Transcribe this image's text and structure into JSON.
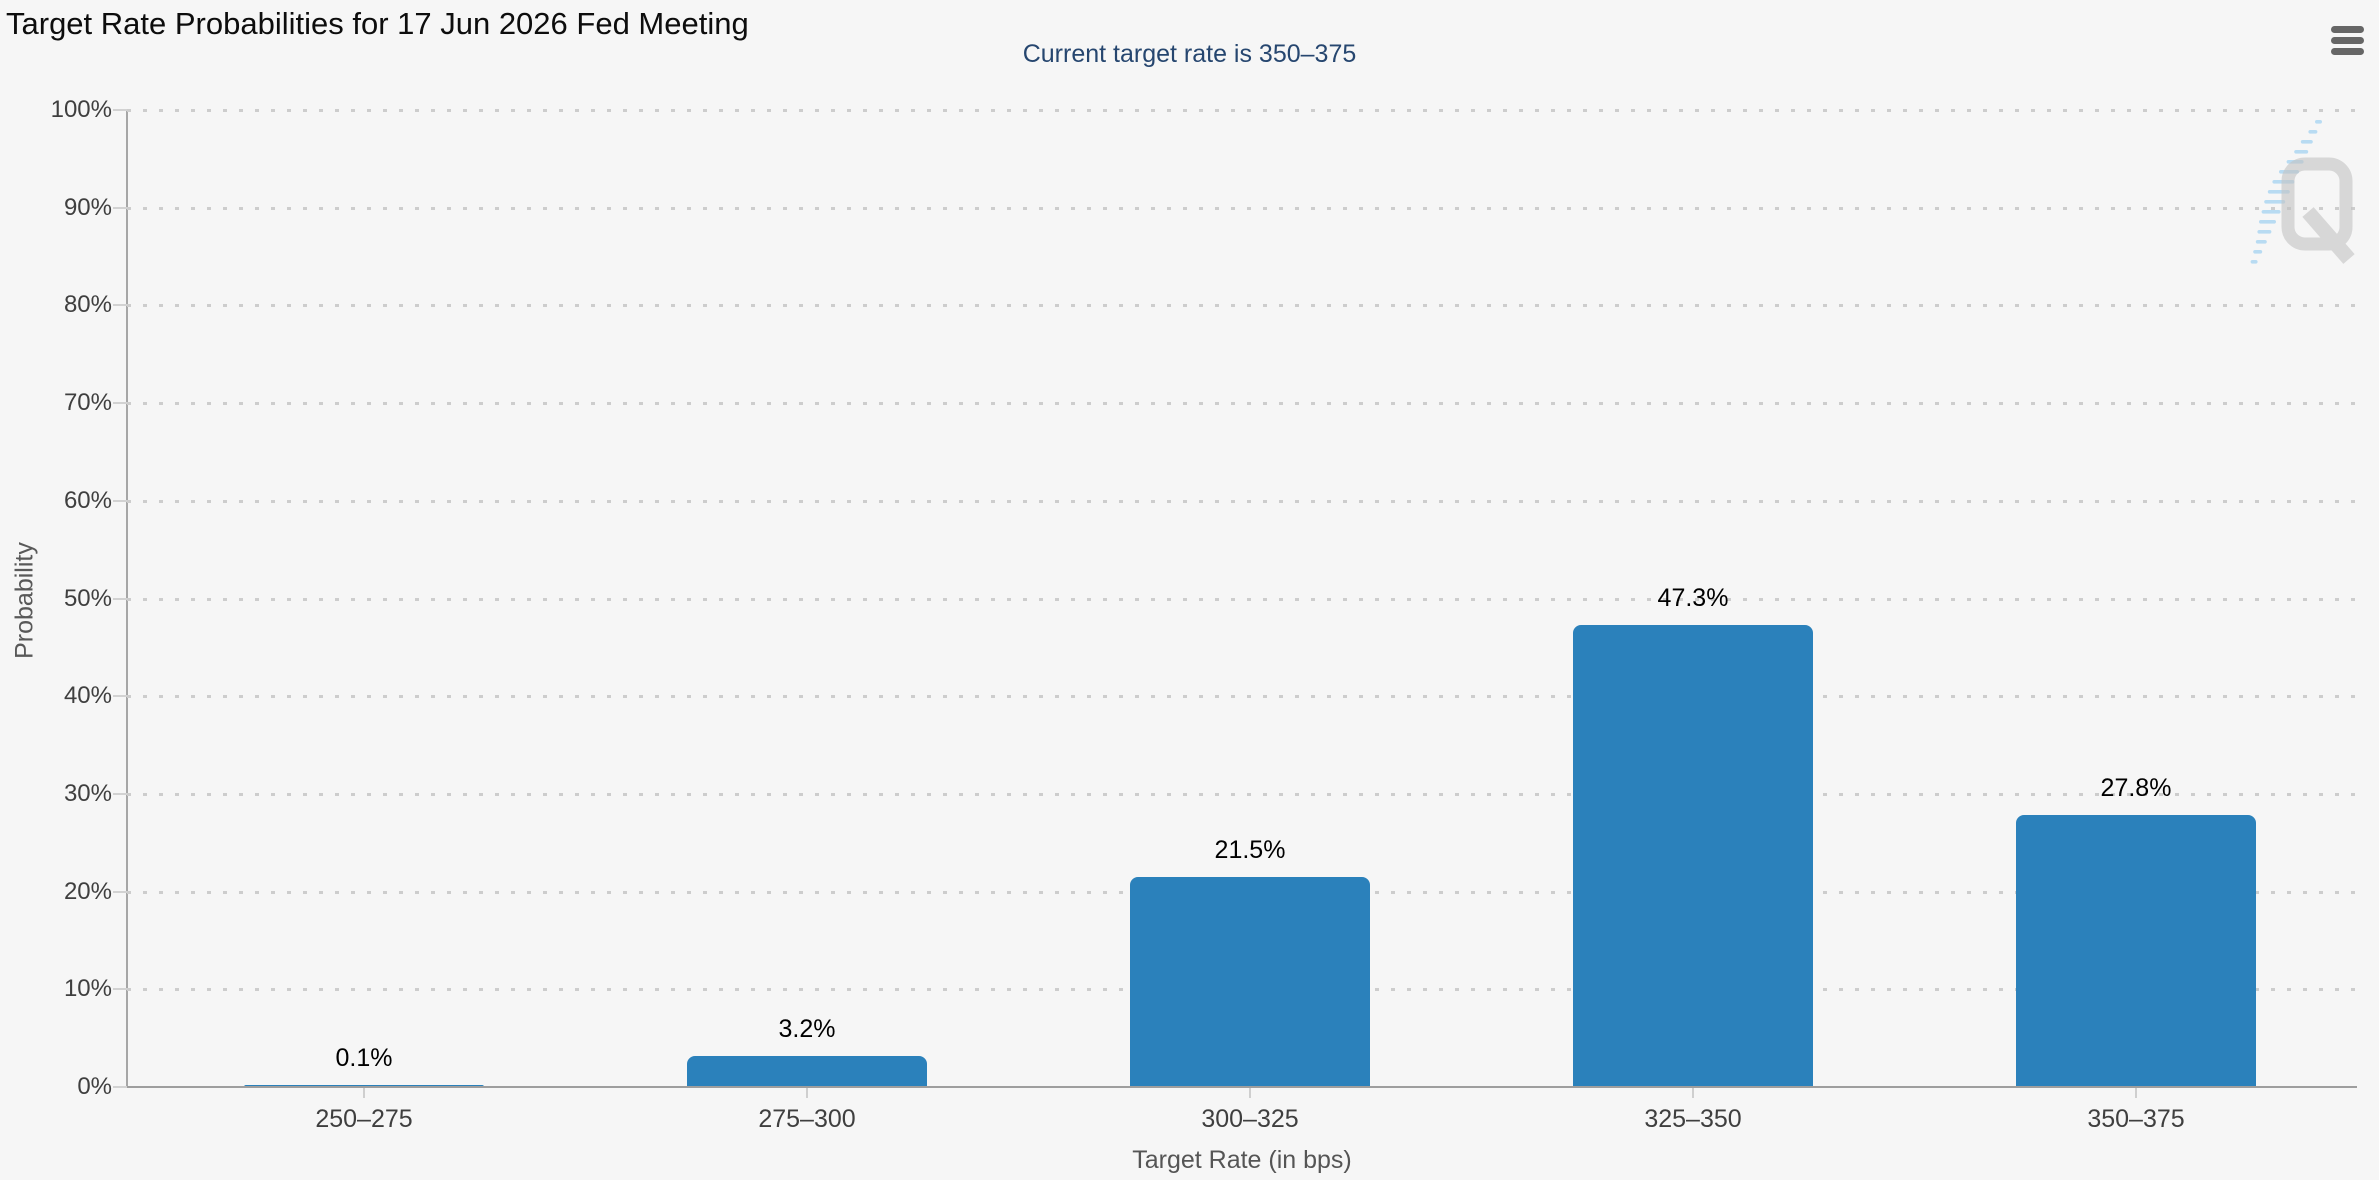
{
  "header": {
    "title": "Target Rate Probabilities for 17 Jun 2026 Fed Meeting",
    "subtitle": "Current target rate is 350–375"
  },
  "icons": {
    "menu": "hamburger-icon",
    "watermark": "quikstrike-q-icon"
  },
  "colors": {
    "background": "#f6f6f6",
    "bar": "#2b81bb",
    "title": "#0d0d0d",
    "subtitle": "#26466f",
    "axis_label": "#3f3f3f",
    "grid_dot": "#cdcdcd",
    "axis_line": "#a0a0a0",
    "menu_icon": "#666666",
    "watermark_gray": "#c3c3c3",
    "watermark_blue": "#aed7f2"
  },
  "chart_data": {
    "type": "bar",
    "title": "Target Rate Probabilities for 17 Jun 2026 Fed Meeting",
    "subtitle": "Current target rate is 350–375",
    "categories": [
      "250–275",
      "275–300",
      "300–325",
      "325–350",
      "350–375"
    ],
    "values": [
      0.1,
      3.2,
      21.5,
      47.3,
      27.8
    ],
    "value_labels": [
      "0.1%",
      "3.2%",
      "21.5%",
      "47.3%",
      "27.8%"
    ],
    "xlabel": "Target Rate (in bps)",
    "ylabel": "Probability",
    "ylim": [
      0,
      100
    ],
    "yticks": [
      0,
      10,
      20,
      30,
      40,
      50,
      60,
      70,
      80,
      90,
      100
    ],
    "ytick_labels": [
      "0%",
      "10%",
      "20%",
      "30%",
      "40%",
      "50%",
      "60%",
      "70%",
      "80%",
      "90%",
      "100%"
    ],
    "grid": "horizontal dotted",
    "legend": "none"
  }
}
